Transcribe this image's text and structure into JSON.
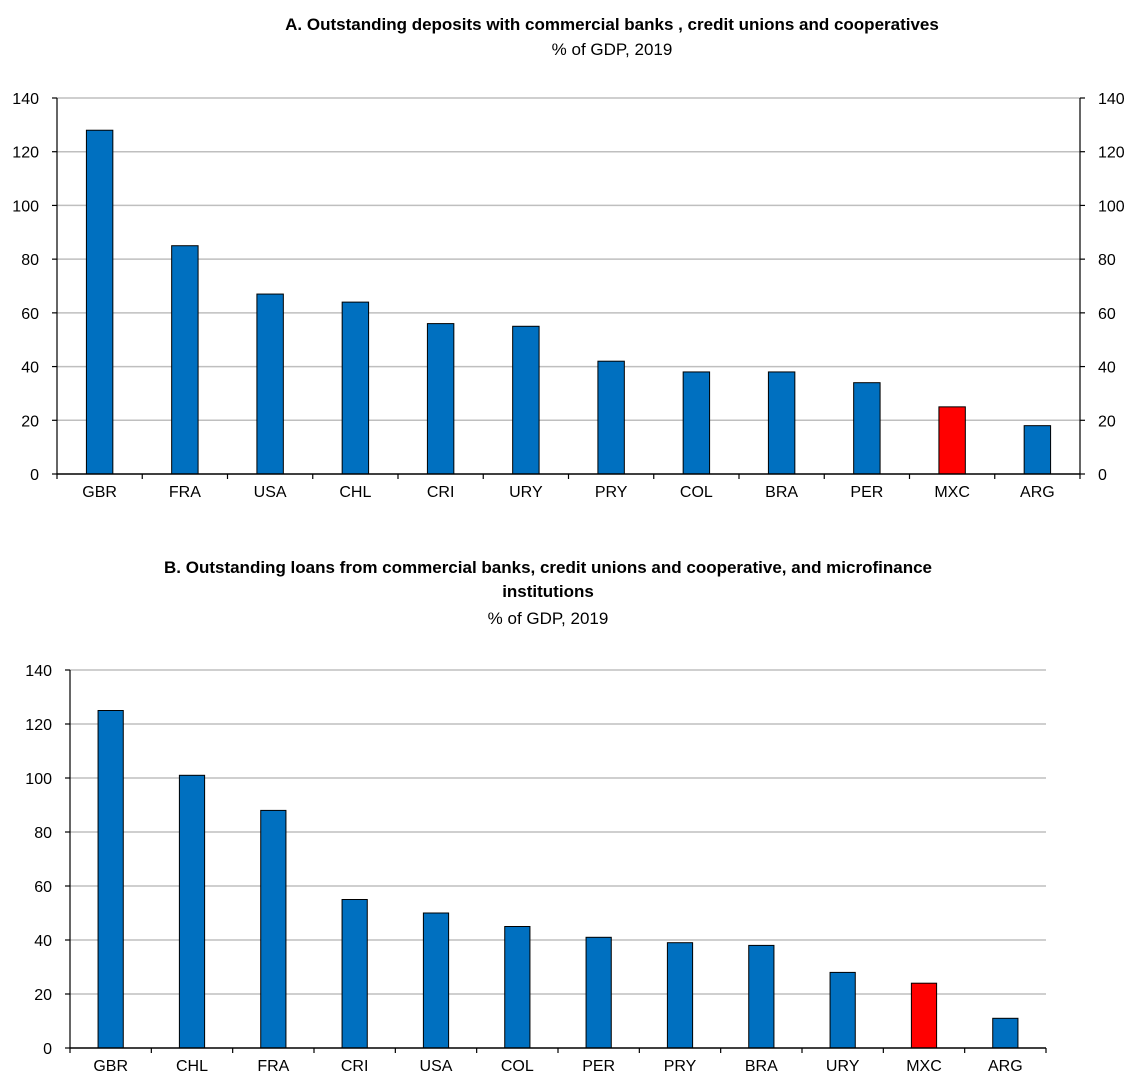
{
  "colors": {
    "bar": "#0070c0",
    "highlight": "#ff0000",
    "grid": "#bfbfbf",
    "axis": "#000000"
  },
  "chart_data": [
    {
      "type": "bar",
      "title": "A. Outstanding deposits with commercial banks , credit unions and cooperatives",
      "subtitle": "% of GDP, 2019",
      "categories": [
        "GBR",
        "FRA",
        "USA",
        "CHL",
        "CRI",
        "URY",
        "PRY",
        "COL",
        "BRA",
        "PER",
        "MXC",
        "ARG"
      ],
      "values": [
        128,
        85,
        67,
        64,
        56,
        55,
        42,
        38,
        38,
        34,
        25,
        18
      ],
      "highlight": "MXC",
      "ylim": [
        0,
        140
      ],
      "yticks": [
        0,
        20,
        40,
        60,
        80,
        100,
        120,
        140
      ],
      "ytick_labels": [
        "0",
        "20",
        "40",
        "60",
        "80",
        "100",
        "120",
        "140"
      ],
      "right_axis": true,
      "grid": true
    },
    {
      "type": "bar",
      "title": "B. Outstanding loans from commercial banks, credit unions and cooperative, and microfinance institutions",
      "title_lines": [
        "B. Outstanding loans from commercial banks, credit unions and cooperative, and microfinance",
        "institutions"
      ],
      "subtitle": "% of GDP, 2019",
      "categories": [
        "GBR",
        "CHL",
        "FRA",
        "CRI",
        "USA",
        "COL",
        "PER",
        "PRY",
        "BRA",
        "URY",
        "MXC",
        "ARG"
      ],
      "values": [
        125,
        101,
        88,
        55,
        50,
        45,
        41,
        39,
        38,
        28,
        24,
        11
      ],
      "highlight": "MXC",
      "ylim": [
        0,
        140
      ],
      "yticks": [
        0,
        20,
        40,
        60,
        80,
        100,
        120,
        140
      ],
      "ytick_labels": [
        "0",
        "20",
        "40",
        "60",
        "80",
        "100",
        "120",
        "140"
      ],
      "right_axis": false,
      "grid": true
    }
  ]
}
